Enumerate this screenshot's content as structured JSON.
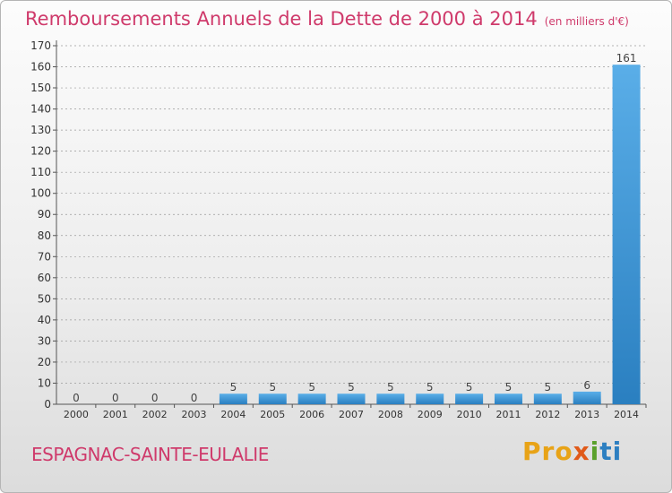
{
  "header": {
    "title": "Remboursements Annuels de la Dette de 2000 à 2014",
    "subtitle": "(en milliers d'€)"
  },
  "footer": {
    "commune": "ESPAGNAC-SAINTE-EULALIE",
    "logo": {
      "part1": "Pro",
      "part2": "x",
      "part3": "i",
      "part4": "ti"
    }
  },
  "colors": {
    "title": "#cf3a6b",
    "bar_light": "#5aaee8",
    "bar_dark": "#2a7fc0",
    "grid": "#9a9a9a"
  },
  "chart_data": {
    "type": "bar",
    "title": "Remboursements Annuels de la Dette de 2000 à 2014",
    "subtitle": "(en milliers d'€)",
    "categories": [
      "2000",
      "2001",
      "2002",
      "2003",
      "2004",
      "2005",
      "2006",
      "2007",
      "2008",
      "2009",
      "2010",
      "2011",
      "2012",
      "2013",
      "2014"
    ],
    "values": [
      0,
      0,
      0,
      0,
      5,
      5,
      5,
      5,
      5,
      5,
      5,
      5,
      5,
      6,
      161
    ],
    "value_labels": [
      "0",
      "0",
      "0",
      "0",
      "5",
      "5",
      "5",
      "5",
      "5",
      "5",
      "5",
      "5",
      "5",
      "6",
      "161"
    ],
    "ylim": [
      0,
      170
    ],
    "yticks": [
      0,
      10,
      20,
      30,
      40,
      50,
      60,
      70,
      80,
      90,
      100,
      110,
      120,
      130,
      140,
      150,
      160,
      170
    ],
    "grid": "horizontal dashed",
    "legend": "none"
  }
}
